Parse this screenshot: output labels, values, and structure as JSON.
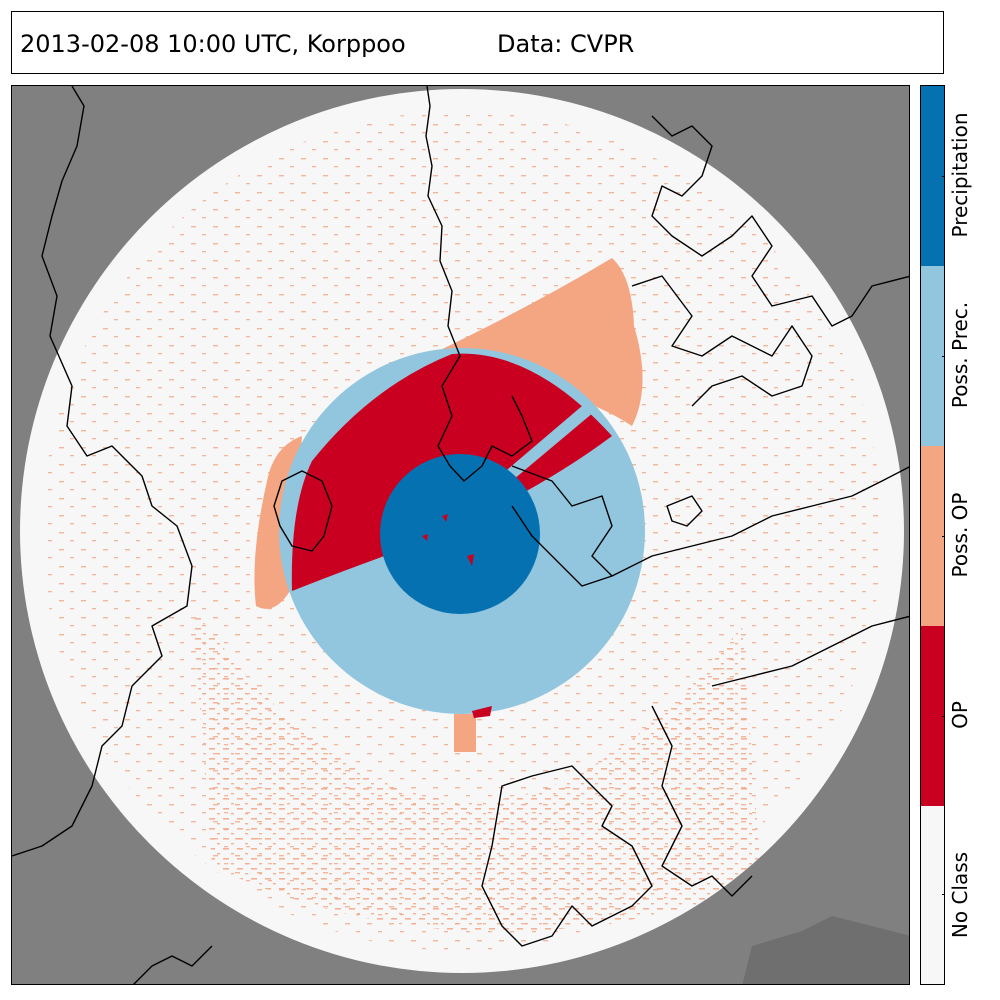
{
  "title": {
    "left": "2013-02-08 10:00 UTC, Korppoo",
    "right": "Data: CVPR"
  },
  "map": {
    "background_color": "#808080",
    "range_disk_color": "#f7f7f7",
    "coastline_color": "#000000"
  },
  "legend": {
    "classes": [
      {
        "label": "Precipitation",
        "color": "#0571b0"
      },
      {
        "label": "Poss. Prec.",
        "color": "#92c5de"
      },
      {
        "label": "Poss. OP",
        "color": "#f4a582"
      },
      {
        "label": "OP",
        "color": "#ca0020"
      },
      {
        "label": "No Class",
        "color": "#f7f7f7"
      }
    ]
  }
}
